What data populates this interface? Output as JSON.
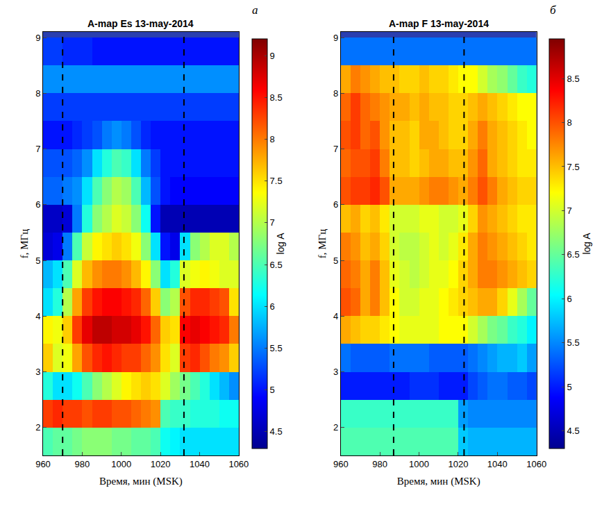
{
  "chart_data": [
    {
      "type": "heatmap",
      "title": "A-map Es 13-may-2014",
      "panel_label": "а",
      "x_label": "Время, мин (MSK)",
      "y_label": "f, МГц",
      "color": "jet",
      "x": [
        962.5,
        967.5,
        972.5,
        977.5,
        982.5,
        987.5,
        992.5,
        997.5,
        1002.5,
        1007.5,
        1012.5,
        1017.5,
        1022.5,
        1027.5,
        1032.5,
        1037.5,
        1042.5,
        1047.5,
        1052.5,
        1057.5
      ],
      "y": [
        1.75,
        2.25,
        2.75,
        3.25,
        3.75,
        4.25,
        4.75,
        5.25,
        5.75,
        6.25,
        6.75,
        7.25,
        7.75,
        8.25,
        8.75
      ],
      "z": [
        [
          6.5,
          6.6,
          6.6,
          6.7,
          6.8,
          6.8,
          6.8,
          6.7,
          6.7,
          6.6,
          6.6,
          6.5,
          6.2,
          6.1,
          6.0,
          6.0,
          6.0,
          6.0,
          6.0,
          6.0
        ],
        [
          8.3,
          8.4,
          8.3,
          8.3,
          8.2,
          8.3,
          8.3,
          8.2,
          8.2,
          8.1,
          8.0,
          7.9,
          6.5,
          6.4,
          6.4,
          6.3,
          6.3,
          6.3,
          6.2,
          6.2
        ],
        [
          6.3,
          6.0,
          6.0,
          6.2,
          6.5,
          6.8,
          7.0,
          7.2,
          7.4,
          7.5,
          7.6,
          7.5,
          7.2,
          6.9,
          6.7,
          6.5,
          6.3,
          6.0,
          5.8,
          5.6
        ],
        [
          7.6,
          7.2,
          7.3,
          7.8,
          8.2,
          8.4,
          8.5,
          8.4,
          8.3,
          8.3,
          8.1,
          7.9,
          7.5,
          7.2,
          8.3,
          8.4,
          8.2,
          8.0,
          7.9,
          7.6
        ],
        [
          7.4,
          7.3,
          7.6,
          8.3,
          8.7,
          8.9,
          8.9,
          8.8,
          8.8,
          8.7,
          8.5,
          8.1,
          7.6,
          7.5,
          8.6,
          8.7,
          8.6,
          8.5,
          8.4,
          8.0
        ],
        [
          6.0,
          6.3,
          7.0,
          7.8,
          8.3,
          8.5,
          8.6,
          8.6,
          8.5,
          8.4,
          8.1,
          7.6,
          6.8,
          7.0,
          8.2,
          8.4,
          8.4,
          8.3,
          8.2,
          7.5
        ],
        [
          5.8,
          6.0,
          6.5,
          7.2,
          7.7,
          7.9,
          8.0,
          8.0,
          7.9,
          7.7,
          7.4,
          6.8,
          6.0,
          6.3,
          7.2,
          7.3,
          7.4,
          7.3,
          7.2,
          7.2
        ],
        [
          4.7,
          4.8,
          5.5,
          6.5,
          7.1,
          7.4,
          7.5,
          7.6,
          7.5,
          7.3,
          6.8,
          6.0,
          5.0,
          4.8,
          6.0,
          6.8,
          7.0,
          7.2,
          7.2,
          7.0
        ],
        [
          4.6,
          4.6,
          4.7,
          5.5,
          6.3,
          6.8,
          7.0,
          7.2,
          7.1,
          6.8,
          6.2,
          5.0,
          4.5,
          4.5,
          4.5,
          4.5,
          4.5,
          4.5,
          4.5,
          4.5
        ],
        [
          5.4,
          5.4,
          5.5,
          5.6,
          6.0,
          6.5,
          6.8,
          7.0,
          6.9,
          6.5,
          5.8,
          5.3,
          5.0,
          4.9,
          4.9,
          4.9,
          4.9,
          4.9,
          4.9,
          4.9
        ],
        [
          5.3,
          5.3,
          5.3,
          5.4,
          5.6,
          6.0,
          6.3,
          6.5,
          6.4,
          6.0,
          5.5,
          5.2,
          5.0,
          5.0,
          5.0,
          5.0,
          5.0,
          5.0,
          5.0,
          5.0
        ],
        [
          5.0,
          5.0,
          5.0,
          5.1,
          5.2,
          5.3,
          5.5,
          5.6,
          5.5,
          5.3,
          5.1,
          5.0,
          5.0,
          5.0,
          5.0,
          5.0,
          5.0,
          5.0,
          5.0,
          5.0
        ],
        [
          5.2,
          5.2,
          5.2,
          5.2,
          5.2,
          5.2,
          5.2,
          5.2,
          5.2,
          5.2,
          5.2,
          5.2,
          5.2,
          5.2,
          5.2,
          5.2,
          5.2,
          5.2,
          5.2,
          5.2
        ],
        [
          5.6,
          5.6,
          5.6,
          5.6,
          5.6,
          5.6,
          5.6,
          5.6,
          5.6,
          5.6,
          5.6,
          5.6,
          5.6,
          5.6,
          5.6,
          5.6,
          5.6,
          5.6,
          5.6,
          5.6
        ],
        [
          5.2,
          5.2,
          5.1,
          5.1,
          5.1,
          5.0,
          5.0,
          5.0,
          5.0,
          5.0,
          5.0,
          5.0,
          5.0,
          5.0,
          5.0,
          5.0,
          5.0,
          5.0,
          5.0,
          5.0
        ]
      ],
      "xlim": [
        960,
        1060
      ],
      "xticks": [
        960,
        980,
        1000,
        1020,
        1040,
        1060
      ],
      "ylim": [
        1.5,
        9.1
      ],
      "yticks": [
        2,
        3,
        4,
        5,
        6,
        7,
        8,
        9
      ],
      "colorbar": {
        "title": "log A",
        "range": [
          4.3,
          9.2
        ],
        "ticks": [
          4.5,
          5,
          5.5,
          6,
          6.5,
          7,
          7.5,
          8,
          8.5,
          9
        ]
      },
      "vlines": [
        970,
        1032
      ]
    },
    {
      "type": "heatmap",
      "title": "A-map F 13-may-2014",
      "panel_label": "б",
      "x_label": "Время, мин (MSK)",
      "y_label": "f, МГц",
      "color": "jet",
      "x": [
        962.5,
        967.5,
        972.5,
        977.5,
        982.5,
        987.5,
        992.5,
        997.5,
        1002.5,
        1007.5,
        1012.5,
        1017.5,
        1022.5,
        1027.5,
        1032.5,
        1037.5,
        1042.5,
        1047.5,
        1052.5,
        1057.5
      ],
      "y": [
        1.75,
        2.25,
        2.75,
        3.25,
        3.75,
        4.25,
        4.75,
        5.25,
        5.75,
        6.25,
        6.75,
        7.25,
        7.75,
        8.25,
        8.75
      ],
      "z": [
        [
          6.4,
          6.4,
          6.4,
          6.4,
          6.4,
          6.4,
          6.4,
          6.4,
          6.4,
          6.4,
          6.4,
          6.4,
          5.8,
          5.7,
          5.7,
          5.7,
          5.7,
          5.7,
          5.7,
          5.7
        ],
        [
          6.3,
          6.3,
          6.3,
          6.3,
          6.3,
          6.3,
          6.3,
          6.3,
          6.3,
          6.3,
          6.3,
          6.3,
          5.6,
          5.5,
          5.5,
          5.5,
          5.5,
          5.5,
          5.5,
          5.5
        ],
        [
          5.0,
          5.0,
          5.0,
          5.0,
          5.0,
          5.0,
          5.0,
          5.1,
          5.1,
          5.1,
          5.0,
          5.0,
          5.0,
          5.2,
          5.3,
          5.4,
          5.4,
          5.3,
          5.3,
          5.2
        ],
        [
          5.4,
          5.3,
          5.3,
          5.3,
          5.3,
          5.4,
          5.4,
          5.4,
          5.4,
          5.3,
          5.3,
          5.3,
          5.3,
          5.4,
          5.5,
          5.6,
          5.7,
          5.7,
          5.8,
          5.6
        ],
        [
          7.6,
          7.5,
          7.4,
          7.4,
          7.3,
          7.2,
          7.1,
          7.1,
          7.1,
          7.1,
          7.2,
          7.2,
          7.2,
          7.0,
          6.8,
          6.6,
          6.5,
          6.3,
          6.2,
          6.0
        ],
        [
          8.0,
          7.9,
          7.6,
          7.8,
          7.5,
          7.2,
          7.0,
          7.0,
          7.1,
          7.1,
          7.2,
          7.3,
          7.4,
          7.5,
          7.6,
          7.6,
          7.4,
          7.1,
          6.8,
          6.5
        ],
        [
          7.9,
          7.8,
          7.6,
          7.8,
          7.5,
          7.1,
          7.0,
          6.9,
          7.0,
          7.1,
          7.1,
          7.2,
          7.4,
          7.6,
          7.8,
          7.8,
          7.7,
          7.6,
          7.5,
          7.4
        ],
        [
          7.8,
          7.7,
          7.5,
          7.6,
          7.4,
          7.0,
          6.9,
          6.9,
          7.0,
          7.1,
          7.0,
          7.1,
          7.3,
          7.6,
          7.8,
          7.7,
          7.6,
          7.5,
          7.4,
          7.3
        ],
        [
          7.5,
          7.6,
          7.4,
          7.5,
          7.3,
          7.0,
          7.0,
          7.0,
          7.1,
          7.1,
          7.0,
          7.0,
          7.1,
          7.4,
          7.7,
          7.6,
          7.5,
          7.4,
          7.3,
          7.3
        ],
        [
          8.0,
          8.1,
          8.1,
          8.2,
          8.0,
          7.6,
          7.6,
          7.6,
          7.7,
          7.8,
          7.8,
          7.7,
          7.6,
          7.8,
          8.0,
          7.8,
          7.6,
          7.5,
          7.4,
          7.4
        ],
        [
          7.9,
          8.0,
          8.0,
          8.1,
          7.8,
          7.5,
          7.5,
          7.4,
          7.5,
          7.6,
          7.6,
          7.5,
          7.5,
          7.7,
          7.9,
          7.6,
          7.5,
          7.4,
          7.3,
          7.3
        ],
        [
          8.0,
          8.1,
          7.9,
          8.0,
          7.7,
          7.5,
          7.5,
          7.4,
          7.6,
          7.6,
          7.5,
          7.4,
          7.4,
          7.6,
          7.8,
          7.6,
          7.5,
          7.4,
          7.3,
          7.2
        ],
        [
          7.9,
          8.1,
          7.9,
          7.8,
          7.7,
          7.6,
          7.6,
          7.5,
          7.6,
          7.5,
          7.5,
          7.4,
          7.4,
          7.5,
          7.6,
          7.5,
          7.4,
          7.3,
          7.2,
          7.2
        ],
        [
          7.6,
          7.8,
          7.7,
          7.6,
          7.5,
          7.5,
          7.4,
          7.4,
          7.5,
          7.4,
          7.4,
          7.3,
          7.2,
          7.2,
          7.0,
          6.8,
          6.7,
          6.5,
          6.3,
          6.2
        ],
        [
          5.4,
          5.4,
          5.4,
          5.4,
          5.4,
          5.4,
          5.4,
          5.4,
          5.4,
          5.4,
          5.4,
          5.4,
          5.4,
          5.4,
          5.4,
          5.4,
          5.4,
          5.4,
          5.4,
          5.4
        ]
      ],
      "xlim": [
        960,
        1060
      ],
      "xticks": [
        960,
        980,
        1000,
        1020,
        1040,
        1060
      ],
      "ylim": [
        1.5,
        9.1
      ],
      "yticks": [
        2,
        3,
        4,
        5,
        6,
        7,
        8,
        9
      ],
      "colorbar": {
        "title": "log A",
        "range": [
          4.3,
          8.95
        ],
        "ticks": [
          4.5,
          5,
          5.5,
          6,
          6.5,
          7,
          7.5,
          8,
          8.5
        ]
      },
      "vlines": [
        987,
        1023
      ]
    }
  ]
}
